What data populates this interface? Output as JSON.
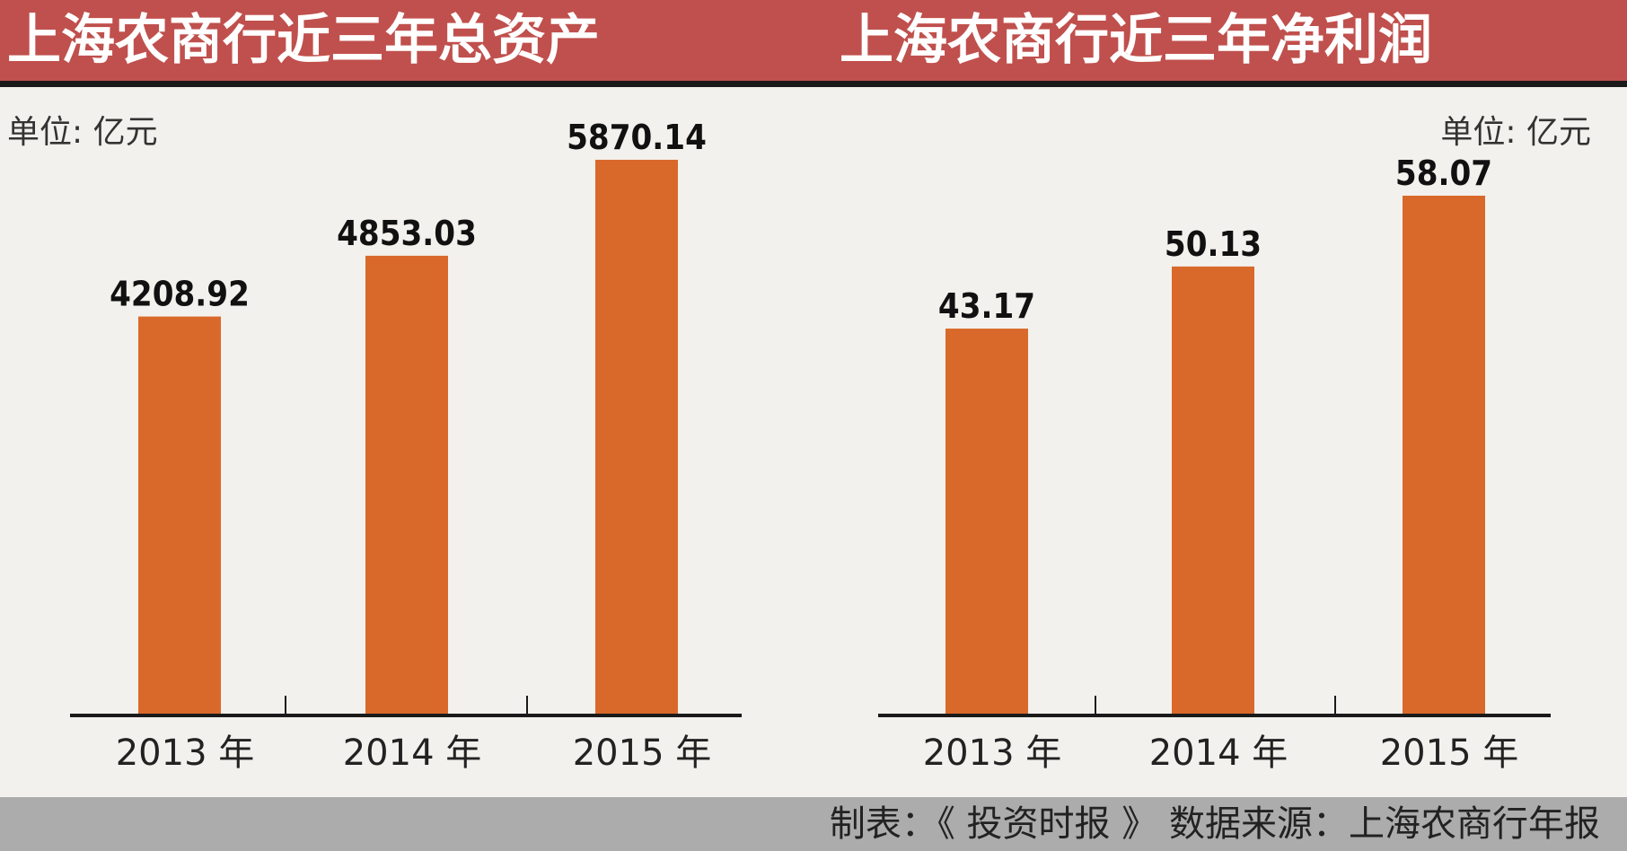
{
  "colors": {
    "bar": "#d9692b",
    "title_bg": "#c0504d",
    "axis": "#1a1a1a"
  },
  "left": {
    "title": "上海农商行近三年总资产",
    "unit": "单位: 亿元"
  },
  "right": {
    "title": "上海农商行近三年净利润",
    "unit": "单位: 亿元"
  },
  "footer": {
    "text": "制表：《 投资时报 》  数据来源：上海农商行年报"
  },
  "chart_data": [
    {
      "type": "bar",
      "title": "上海农商行近三年总资产",
      "unit": "单位: 亿元",
      "categories": [
        "2013 年",
        "2014 年",
        "2015 年"
      ],
      "values": [
        4208.92,
        4853.03,
        5870.14
      ],
      "labels": [
        "4208.92",
        "4853.03",
        "5870.14"
      ]
    },
    {
      "type": "bar",
      "title": "上海农商行近三年净利润",
      "unit": "单位: 亿元",
      "categories": [
        "2013 年",
        "2014 年",
        "2015 年"
      ],
      "values": [
        43.17,
        50.13,
        58.07
      ],
      "labels": [
        "43.17",
        "50.13",
        "58.07"
      ]
    }
  ]
}
